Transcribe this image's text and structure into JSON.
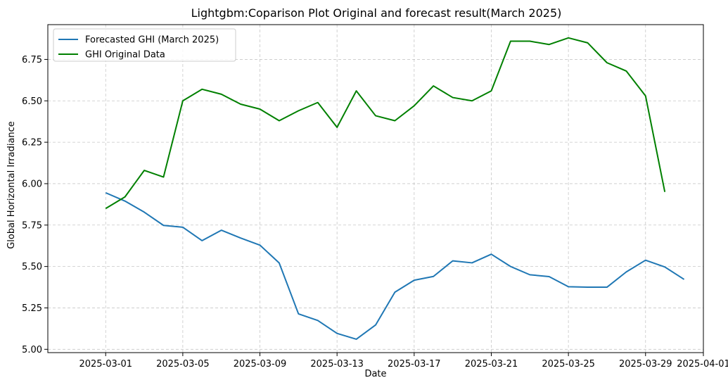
{
  "chart_data": {
    "type": "line",
    "title": "Lightgbm:Coparison Plot Original and forecast result(March 2025)",
    "xlabel": "Date",
    "ylabel": "Global Horizontal Irradiance",
    "x_type": "date",
    "xlim": [
      "2025-02-26",
      "2025-04-01"
    ],
    "ylim": [
      4.98,
      6.96
    ],
    "x_ticks": [
      "2025-03-01",
      "2025-03-05",
      "2025-03-09",
      "2025-03-13",
      "2025-03-17",
      "2025-03-21",
      "2025-03-25",
      "2025-03-29",
      "2025-04-01"
    ],
    "y_ticks": [
      "5.00",
      "5.25",
      "5.50",
      "5.75",
      "6.00",
      "6.25",
      "6.50",
      "6.75"
    ],
    "grid": true,
    "legend_position": "top-left",
    "series": [
      {
        "name": "Forecasted GHI (March 2025)",
        "color": "#1f77b4",
        "x": [
          "2025-03-01",
          "2025-03-02",
          "2025-03-03",
          "2025-03-04",
          "2025-03-05",
          "2025-03-06",
          "2025-03-07",
          "2025-03-08",
          "2025-03-09",
          "2025-03-10",
          "2025-03-11",
          "2025-03-12",
          "2025-03-13",
          "2025-03-14",
          "2025-03-15",
          "2025-03-16",
          "2025-03-17",
          "2025-03-18",
          "2025-03-19",
          "2025-03-20",
          "2025-03-21",
          "2025-03-22",
          "2025-03-23",
          "2025-03-24",
          "2025-03-25",
          "2025-03-26",
          "2025-03-27",
          "2025-03-28",
          "2025-03-29",
          "2025-03-30",
          "2025-03-31"
        ],
        "values": [
          5.945,
          5.895,
          5.828,
          5.748,
          5.737,
          5.656,
          5.719,
          5.672,
          5.629,
          5.521,
          5.214,
          5.174,
          5.096,
          5.061,
          5.147,
          5.345,
          5.417,
          5.44,
          5.534,
          5.522,
          5.574,
          5.5,
          5.45,
          5.439,
          5.378,
          5.375,
          5.375,
          5.467,
          5.538,
          5.497,
          5.422
        ]
      },
      {
        "name": "GHI Original Data",
        "color": "#008000",
        "x": [
          "2025-03-01",
          "2025-03-02",
          "2025-03-03",
          "2025-03-04",
          "2025-03-05",
          "2025-03-06",
          "2025-03-07",
          "2025-03-08",
          "2025-03-09",
          "2025-03-10",
          "2025-03-11",
          "2025-03-12",
          "2025-03-13",
          "2025-03-14",
          "2025-03-15",
          "2025-03-16",
          "2025-03-17",
          "2025-03-18",
          "2025-03-19",
          "2025-03-20",
          "2025-03-21",
          "2025-03-22",
          "2025-03-23",
          "2025-03-24",
          "2025-03-25",
          "2025-03-26",
          "2025-03-27",
          "2025-03-28",
          "2025-03-29",
          "2025-03-30"
        ],
        "values": [
          5.85,
          5.92,
          6.08,
          6.04,
          6.5,
          6.57,
          6.54,
          6.48,
          6.45,
          6.38,
          6.44,
          6.49,
          6.34,
          6.56,
          6.41,
          6.38,
          6.47,
          6.59,
          6.52,
          6.5,
          6.56,
          6.86,
          6.86,
          6.84,
          6.88,
          6.85,
          6.73,
          6.68,
          6.53,
          5.95
        ]
      }
    ]
  }
}
